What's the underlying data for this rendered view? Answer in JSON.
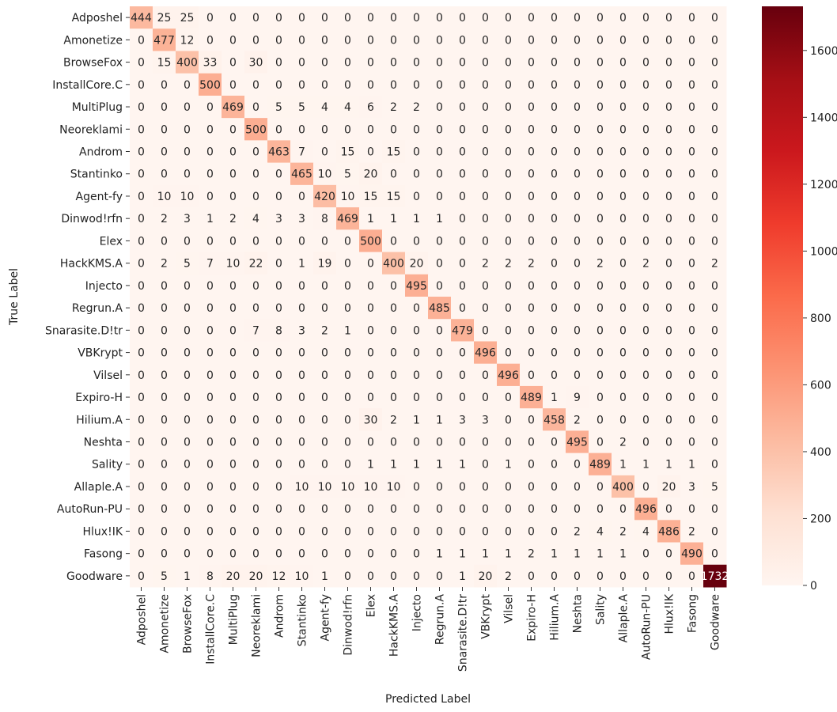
{
  "chart_data": {
    "type": "heatmap",
    "title": "",
    "xlabel": "Predicted Label",
    "ylabel": "True Label",
    "labels": [
      "Adposhel",
      "Amonetize",
      "BrowseFox",
      "InstallCore.C",
      "MultiPlug",
      "Neoreklami",
      "Androm",
      "Stantinko",
      "Agent-fy",
      "Dinwod!rfn",
      "Elex",
      "HackKMS.A",
      "Injecto",
      "Regrun.A",
      "Snarasite.D!tr",
      "VBKrypt",
      "Vilsel",
      "Expiro-H",
      "Hilium.A",
      "Neshta",
      "Sality",
      "Allaple.A",
      "AutoRun-PU",
      "Hlux!IK",
      "Fasong",
      "Goodware"
    ],
    "matrix": [
      [
        444,
        25,
        25,
        0,
        0,
        0,
        0,
        0,
        0,
        0,
        0,
        0,
        0,
        0,
        0,
        0,
        0,
        0,
        0,
        0,
        0,
        0,
        0,
        0,
        0,
        0
      ],
      [
        0,
        477,
        12,
        0,
        0,
        0,
        0,
        0,
        0,
        0,
        0,
        0,
        0,
        0,
        0,
        0,
        0,
        0,
        0,
        0,
        0,
        0,
        0,
        0,
        0,
        0
      ],
      [
        0,
        15,
        400,
        33,
        0,
        30,
        0,
        0,
        0,
        0,
        0,
        0,
        0,
        0,
        0,
        0,
        0,
        0,
        0,
        0,
        0,
        0,
        0,
        0,
        0,
        0
      ],
      [
        0,
        0,
        0,
        500,
        0,
        0,
        0,
        0,
        0,
        0,
        0,
        0,
        0,
        0,
        0,
        0,
        0,
        0,
        0,
        0,
        0,
        0,
        0,
        0,
        0,
        0
      ],
      [
        0,
        0,
        0,
        0,
        469,
        0,
        5,
        5,
        4,
        4,
        6,
        2,
        2,
        0,
        0,
        0,
        0,
        0,
        0,
        0,
        0,
        0,
        0,
        0,
        0,
        0
      ],
      [
        0,
        0,
        0,
        0,
        0,
        500,
        0,
        0,
        0,
        0,
        0,
        0,
        0,
        0,
        0,
        0,
        0,
        0,
        0,
        0,
        0,
        0,
        0,
        0,
        0,
        0
      ],
      [
        0,
        0,
        0,
        0,
        0,
        0,
        463,
        7,
        0,
        15,
        0,
        15,
        0,
        0,
        0,
        0,
        0,
        0,
        0,
        0,
        0,
        0,
        0,
        0,
        0,
        0
      ],
      [
        0,
        0,
        0,
        0,
        0,
        0,
        0,
        465,
        10,
        5,
        20,
        0,
        0,
        0,
        0,
        0,
        0,
        0,
        0,
        0,
        0,
        0,
        0,
        0,
        0,
        0
      ],
      [
        0,
        10,
        10,
        0,
        0,
        0,
        0,
        0,
        420,
        10,
        15,
        15,
        0,
        0,
        0,
        0,
        0,
        0,
        0,
        0,
        0,
        0,
        0,
        0,
        0,
        0
      ],
      [
        0,
        2,
        3,
        1,
        2,
        4,
        3,
        3,
        8,
        469,
        1,
        1,
        1,
        1,
        0,
        0,
        0,
        0,
        0,
        0,
        0,
        0,
        0,
        0,
        0,
        0
      ],
      [
        0,
        0,
        0,
        0,
        0,
        0,
        0,
        0,
        0,
        0,
        500,
        0,
        0,
        0,
        0,
        0,
        0,
        0,
        0,
        0,
        0,
        0,
        0,
        0,
        0,
        0
      ],
      [
        0,
        2,
        5,
        7,
        10,
        22,
        0,
        1,
        19,
        0,
        0,
        400,
        20,
        0,
        0,
        2,
        2,
        2,
        0,
        0,
        2,
        0,
        2,
        0,
        0,
        2
      ],
      [
        0,
        0,
        0,
        0,
        0,
        0,
        0,
        0,
        0,
        0,
        0,
        0,
        495,
        0,
        0,
        0,
        0,
        0,
        0,
        0,
        0,
        0,
        0,
        0,
        0,
        0
      ],
      [
        0,
        0,
        0,
        0,
        0,
        0,
        0,
        0,
        0,
        0,
        0,
        0,
        0,
        485,
        0,
        0,
        0,
        0,
        0,
        0,
        0,
        0,
        0,
        0,
        0,
        0
      ],
      [
        0,
        0,
        0,
        0,
        0,
        7,
        8,
        3,
        2,
        1,
        0,
        0,
        0,
        0,
        479,
        0,
        0,
        0,
        0,
        0,
        0,
        0,
        0,
        0,
        0,
        0
      ],
      [
        0,
        0,
        0,
        0,
        0,
        0,
        0,
        0,
        0,
        0,
        0,
        0,
        0,
        0,
        0,
        496,
        0,
        0,
        0,
        0,
        0,
        0,
        0,
        0,
        0,
        0
      ],
      [
        0,
        0,
        0,
        0,
        0,
        0,
        0,
        0,
        0,
        0,
        0,
        0,
        0,
        0,
        0,
        0,
        496,
        0,
        0,
        0,
        0,
        0,
        0,
        0,
        0,
        0
      ],
      [
        0,
        0,
        0,
        0,
        0,
        0,
        0,
        0,
        0,
        0,
        0,
        0,
        0,
        0,
        0,
        0,
        0,
        489,
        1,
        9,
        0,
        0,
        0,
        0,
        0,
        0
      ],
      [
        0,
        0,
        0,
        0,
        0,
        0,
        0,
        0,
        0,
        0,
        30,
        2,
        1,
        1,
        3,
        3,
        0,
        0,
        458,
        2,
        0,
        0,
        0,
        0,
        0,
        0
      ],
      [
        0,
        0,
        0,
        0,
        0,
        0,
        0,
        0,
        0,
        0,
        0,
        0,
        0,
        0,
        0,
        0,
        0,
        0,
        0,
        495,
        0,
        2,
        0,
        0,
        0,
        0
      ],
      [
        0,
        0,
        0,
        0,
        0,
        0,
        0,
        0,
        0,
        0,
        1,
        1,
        1,
        1,
        1,
        0,
        1,
        0,
        0,
        0,
        489,
        1,
        1,
        1,
        1,
        0
      ],
      [
        0,
        0,
        0,
        0,
        0,
        0,
        0,
        10,
        10,
        10,
        10,
        10,
        0,
        0,
        0,
        0,
        0,
        0,
        0,
        0,
        0,
        400,
        0,
        20,
        3,
        5
      ],
      [
        0,
        0,
        0,
        0,
        0,
        0,
        0,
        0,
        0,
        0,
        0,
        0,
        0,
        0,
        0,
        0,
        0,
        0,
        0,
        0,
        0,
        0,
        496,
        0,
        0,
        0
      ],
      [
        0,
        0,
        0,
        0,
        0,
        0,
        0,
        0,
        0,
        0,
        0,
        0,
        0,
        0,
        0,
        0,
        0,
        0,
        0,
        2,
        4,
        2,
        4,
        486,
        2,
        0
      ],
      [
        0,
        0,
        0,
        0,
        0,
        0,
        0,
        0,
        0,
        0,
        0,
        0,
        0,
        1,
        1,
        1,
        1,
        2,
        1,
        1,
        1,
        1,
        0,
        0,
        490,
        0
      ],
      [
        0,
        5,
        1,
        8,
        20,
        20,
        12,
        10,
        1,
        0,
        0,
        0,
        0,
        0,
        1,
        20,
        2,
        0,
        0,
        0,
        0,
        0,
        0,
        0,
        0,
        1732
      ]
    ],
    "colorbar": {
      "colormap": "Reds",
      "range": [
        0,
        1732
      ],
      "ticks": [
        0,
        200,
        400,
        600,
        800,
        1000,
        1200,
        1400,
        1600
      ]
    },
    "grid": false
  }
}
